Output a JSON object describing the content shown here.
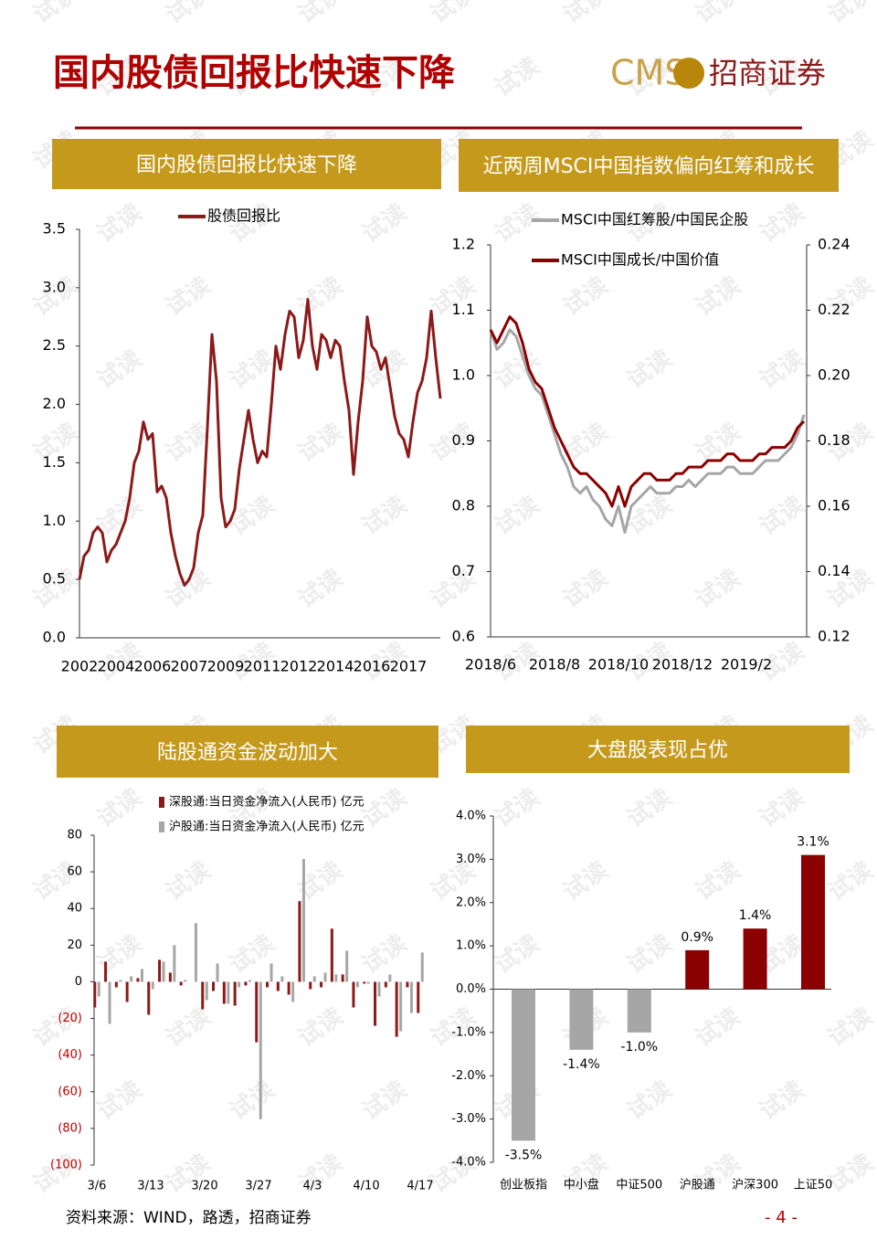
{
  "page": {
    "title": "国内股债回报比快速下降",
    "logo_en": "CMS",
    "logo_cn": "招商证券",
    "source": "资料来源：WIND，路透，招商证券",
    "page_number": "- 4 -",
    "watermark": "试读"
  },
  "chart_data": [
    {
      "type": "line",
      "title": "国内股债回报比快速下降",
      "categories": [
        "2002",
        null,
        null,
        null,
        null,
        null,
        null,
        null,
        "2004",
        null,
        null,
        null,
        null,
        null,
        null,
        null,
        "2006",
        null,
        null,
        null,
        null,
        null,
        null,
        null,
        "2007",
        null,
        null,
        null,
        null,
        null,
        null,
        null,
        "2009",
        null,
        null,
        null,
        null,
        null,
        null,
        null,
        "2011",
        null,
        null,
        null,
        null,
        null,
        null,
        null,
        "2012",
        null,
        null,
        null,
        null,
        null,
        null,
        null,
        "2014",
        null,
        null,
        null,
        null,
        null,
        null,
        null,
        "2016",
        null,
        null,
        null,
        null,
        null,
        null,
        null,
        "2017",
        null,
        null,
        null,
        null,
        null,
        null,
        null
      ],
      "series": [
        {
          "name": "股债回报比",
          "color": "#8b1a1a",
          "values": [
            0.5,
            0.7,
            0.75,
            0.9,
            0.95,
            0.9,
            0.65,
            0.75,
            0.8,
            0.9,
            1.0,
            1.2,
            1.5,
            1.6,
            1.85,
            1.7,
            1.75,
            1.25,
            1.3,
            1.2,
            0.9,
            0.7,
            0.55,
            0.45,
            0.5,
            0.6,
            0.9,
            1.05,
            1.8,
            2.6,
            2.2,
            1.2,
            0.95,
            1.0,
            1.1,
            1.45,
            1.7,
            1.95,
            1.7,
            1.5,
            1.6,
            1.55,
            2.0,
            2.5,
            2.3,
            2.6,
            2.8,
            2.75,
            2.4,
            2.55,
            2.9,
            2.5,
            2.3,
            2.6,
            2.55,
            2.4,
            2.55,
            2.5,
            2.2,
            1.95,
            1.4,
            1.85,
            2.2,
            2.75,
            2.5,
            2.45,
            2.3,
            2.4,
            2.15,
            1.9,
            1.75,
            1.7,
            1.55,
            1.85,
            2.1,
            2.2,
            2.4,
            2.8,
            2.4,
            2.05
          ]
        }
      ],
      "ylim": [
        0,
        3.5
      ],
      "yticks": [
        {
          "value": 0,
          "label": "0.0"
        },
        0.5,
        {
          "value": 1,
          "label": "1.0"
        },
        1.5,
        {
          "value": 2,
          "label": "2.0"
        },
        2.5,
        {
          "value": 3,
          "label": "3.0"
        },
        3.5
      ]
    },
    {
      "type": "line",
      "title": "近两周MSCI中国指数偏向红筹和成长",
      "categories": [
        "2018/6",
        null,
        null,
        null,
        null,
        null,
        null,
        null,
        null,
        null,
        "2018/8",
        null,
        null,
        null,
        null,
        null,
        null,
        null,
        null,
        null,
        "2018/10",
        null,
        null,
        null,
        null,
        null,
        null,
        null,
        null,
        null,
        "2018/12",
        null,
        null,
        null,
        null,
        null,
        null,
        null,
        null,
        null,
        "2019/2",
        null,
        null,
        null,
        null,
        null,
        null,
        null,
        null,
        null
      ],
      "series": [
        {
          "name": "MSCI中国红筹股/中国民企股",
          "color": "#a6a6a6",
          "values": [
            1.07,
            1.04,
            1.05,
            1.07,
            1.06,
            1.03,
            1.0,
            0.98,
            0.97,
            0.94,
            0.91,
            0.88,
            0.86,
            0.83,
            0.82,
            0.83,
            0.81,
            0.8,
            0.78,
            0.77,
            0.8,
            0.76,
            0.8,
            0.81,
            0.82,
            0.83,
            0.82,
            0.82,
            0.82,
            0.83,
            0.83,
            0.84,
            0.83,
            0.84,
            0.85,
            0.85,
            0.85,
            0.86,
            0.86,
            0.85,
            0.85,
            0.85,
            0.86,
            0.87,
            0.87,
            0.87,
            0.88,
            0.89,
            0.91,
            0.94
          ]
        },
        {
          "name": "MSCI中国成长/中国价值",
          "color": "#8b0000",
          "axis": "y2",
          "values": [
            0.214,
            0.21,
            0.214,
            0.218,
            0.216,
            0.21,
            0.202,
            0.198,
            0.196,
            0.19,
            0.184,
            0.18,
            0.176,
            0.172,
            0.17,
            0.17,
            0.168,
            0.166,
            0.164,
            0.16,
            0.166,
            0.16,
            0.166,
            0.168,
            0.17,
            0.17,
            0.168,
            0.168,
            0.168,
            0.17,
            0.17,
            0.172,
            0.172,
            0.172,
            0.174,
            0.174,
            0.174,
            0.176,
            0.176,
            0.174,
            0.174,
            0.174,
            0.176,
            0.176,
            0.178,
            0.178,
            0.178,
            0.18,
            0.184,
            0.186
          ]
        }
      ],
      "ylim": [
        0.6,
        1.2
      ],
      "yticks": [
        0.6,
        0.7,
        0.8,
        0.9,
        {
          "value": 1,
          "label": "1.0"
        },
        1.1,
        1.2
      ],
      "y2lim": [
        0.12,
        0.24
      ],
      "y2ticks": [
        0.12,
        0.14,
        0.16,
        0.18,
        {
          "value": 0.2,
          "label": "0.20"
        },
        0.22,
        0.24
      ]
    },
    {
      "type": "bar",
      "title": "陆股通资金波动加大",
      "categories": [
        "3/6",
        null,
        null,
        null,
        null,
        "3/13",
        null,
        null,
        null,
        null,
        "3/20",
        null,
        null,
        null,
        null,
        "3/27",
        null,
        null,
        null,
        null,
        "4/3",
        null,
        null,
        null,
        null,
        "4/10",
        null,
        null,
        null,
        null,
        "4/17"
      ],
      "series": [
        {
          "name": "深股通:当日资金净流入(人民币) 亿元",
          "color": "#8b1a1a",
          "values": [
            -14,
            11,
            -3,
            -11,
            2,
            -18,
            12,
            5,
            -2,
            0,
            -15,
            -5,
            -12,
            -13,
            -2,
            -33,
            -3,
            -5,
            -7,
            44,
            -4,
            -3,
            29,
            4,
            -14,
            -1,
            -24,
            -3,
            -30,
            -3,
            -17
          ]
        },
        {
          "name": "沪股通:当日资金净流入(人民币) 亿元",
          "color": "#a6a6a6",
          "values": [
            -8,
            -23,
            1,
            3,
            7,
            -4,
            11,
            20,
            1,
            32,
            -10,
            10,
            -12,
            -3,
            1,
            -75,
            10,
            3,
            -11,
            67,
            3,
            5,
            4,
            17,
            -3,
            -1,
            -8,
            4,
            -27,
            -17,
            16
          ]
        }
      ],
      "ylim": [
        -100,
        80
      ],
      "yticks": [
        {
          "value": -100,
          "label": "(100)"
        },
        {
          "value": -80,
          "label": "(80)"
        },
        {
          "value": -60,
          "label": "(60)"
        },
        {
          "value": -40,
          "label": "(40)"
        },
        {
          "value": -20,
          "label": "(20)"
        },
        0,
        20,
        40,
        60,
        80
      ]
    },
    {
      "type": "bar",
      "title": "大盘股表现占优",
      "categories": [
        "创业板指",
        "中小盘",
        "中证500",
        "沪股通",
        "沪深300",
        "上证50"
      ],
      "values": [
        -3.5,
        -1.4,
        -1.0,
        0.9,
        1.4,
        3.1
      ],
      "value_labels": [
        "-3.5%",
        "-1.4%",
        "-1.0%",
        "0.9%",
        "1.4%",
        "3.1%"
      ],
      "colors": [
        "#a6a6a6",
        "#a6a6a6",
        "#a6a6a6",
        "#8b0000",
        "#8b0000",
        "#8b0000"
      ],
      "ylim": [
        -4,
        4
      ],
      "yticks": [
        {
          "value": -4,
          "label": "-4.0%"
        },
        {
          "value": -3,
          "label": "-3.0%"
        },
        {
          "value": -2,
          "label": "-2.0%"
        },
        {
          "value": -1,
          "label": "-1.0%"
        },
        {
          "value": 0,
          "label": "0.0%"
        },
        {
          "value": 1,
          "label": "1.0%"
        },
        {
          "value": 2,
          "label": "2.0%"
        },
        {
          "value": 3,
          "label": "3.0%"
        },
        {
          "value": 4,
          "label": "4.0%"
        }
      ]
    }
  ]
}
